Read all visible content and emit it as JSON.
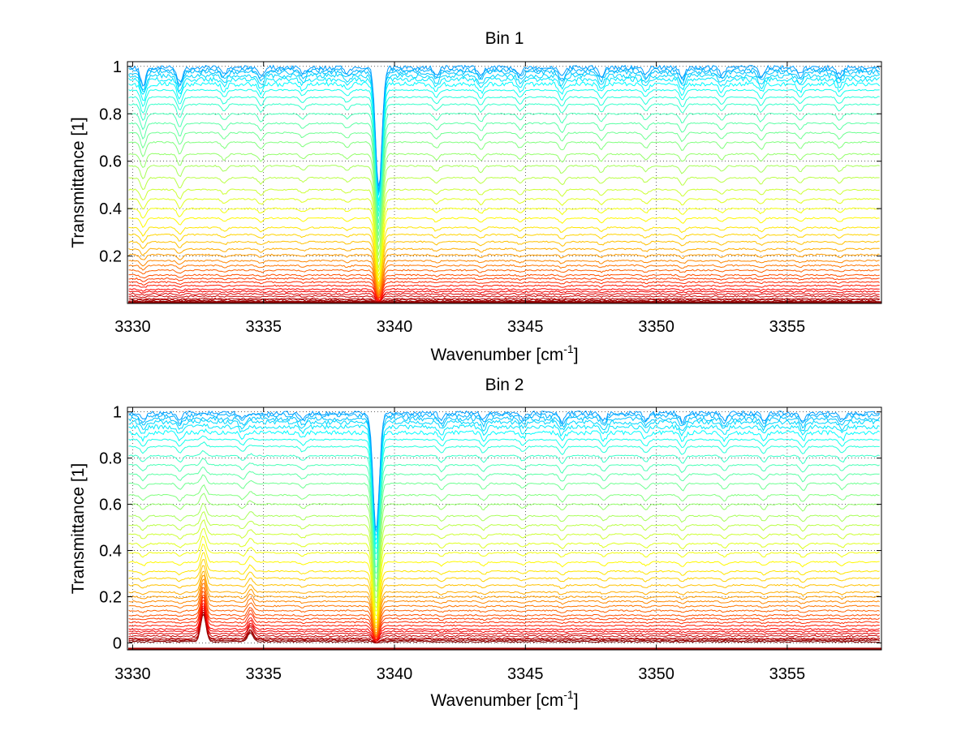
{
  "chart_data": [
    {
      "type": "line",
      "title": "Bin 1",
      "xlabel": "Wavenumber [cm",
      "xlabel_sup": "-1",
      "xlabel_tail": "]",
      "ylabel": "Transmittance [1]",
      "xlim": [
        3329.8,
        3358.6
      ],
      "ylim": [
        0,
        1.02
      ],
      "xticks": [
        3330,
        3335,
        3340,
        3345,
        3350,
        3355
      ],
      "yticks": [
        0.2,
        0.4,
        0.6,
        0.8,
        1
      ],
      "ytick_labels": [
        "0.2",
        "0.4",
        "0.6",
        "0.8",
        "1"
      ],
      "grid": true,
      "colormap": "jet",
      "line_count": 40,
      "baselines": [
        0.005,
        0.01,
        0.015,
        0.02,
        0.03,
        0.04,
        0.05,
        0.06,
        0.075,
        0.09,
        0.105,
        0.12,
        0.14,
        0.16,
        0.18,
        0.205,
        0.23,
        0.26,
        0.29,
        0.32,
        0.36,
        0.4,
        0.44,
        0.48,
        0.53,
        0.58,
        0.63,
        0.68,
        0.72,
        0.76,
        0.8,
        0.84,
        0.87,
        0.9,
        0.925,
        0.945,
        0.96,
        0.975,
        0.985,
        0.995
      ],
      "absorption_lines": [
        {
          "center": 3339.4,
          "depth": 0.85,
          "width": 0.12
        },
        {
          "center": 3330.4,
          "depth": 0.12,
          "width": 0.1
        },
        {
          "center": 3331.8,
          "depth": 0.1,
          "width": 0.1
        },
        {
          "center": 3333.5,
          "depth": 0.05,
          "width": 0.1
        },
        {
          "center": 3334.9,
          "depth": 0.06,
          "width": 0.1
        },
        {
          "center": 3336.5,
          "depth": 0.04,
          "width": 0.1
        },
        {
          "center": 3338.2,
          "depth": 0.04,
          "width": 0.1
        },
        {
          "center": 3341.6,
          "depth": 0.05,
          "width": 0.1
        },
        {
          "center": 3343.3,
          "depth": 0.06,
          "width": 0.1
        },
        {
          "center": 3344.8,
          "depth": 0.05,
          "width": 0.1
        },
        {
          "center": 3346.4,
          "depth": 0.07,
          "width": 0.1
        },
        {
          "center": 3347.9,
          "depth": 0.06,
          "width": 0.1
        },
        {
          "center": 3349.6,
          "depth": 0.05,
          "width": 0.1
        },
        {
          "center": 3351.0,
          "depth": 0.07,
          "width": 0.1
        },
        {
          "center": 3352.5,
          "depth": 0.05,
          "width": 0.1
        },
        {
          "center": 3354.0,
          "depth": 0.06,
          "width": 0.1
        },
        {
          "center": 3355.5,
          "depth": 0.05,
          "width": 0.1
        },
        {
          "center": 3357.0,
          "depth": 0.05,
          "width": 0.1
        }
      ],
      "emission_lines": []
    },
    {
      "type": "line",
      "title": "Bin 2",
      "xlabel": "Wavenumber [cm",
      "xlabel_sup": "-1",
      "xlabel_tail": "]",
      "ylabel": "Transmittance [1]",
      "xlim": [
        3329.8,
        3358.6
      ],
      "ylim": [
        -0.03,
        1.02
      ],
      "xticks": [
        3330,
        3335,
        3340,
        3345,
        3350,
        3355
      ],
      "yticks": [
        0,
        0.2,
        0.4,
        0.6,
        0.8,
        1
      ],
      "ytick_labels": [
        "0",
        "0.2",
        "0.4",
        "0.6",
        "0.8",
        "1"
      ],
      "grid": true,
      "colormap": "jet",
      "line_count": 40,
      "baselines": [
        0.005,
        0.01,
        0.015,
        0.02,
        0.03,
        0.04,
        0.05,
        0.06,
        0.075,
        0.09,
        0.105,
        0.12,
        0.14,
        0.16,
        0.18,
        0.2,
        0.22,
        0.25,
        0.28,
        0.31,
        0.35,
        0.39,
        0.43,
        0.47,
        0.51,
        0.55,
        0.6,
        0.64,
        0.69,
        0.73,
        0.77,
        0.81,
        0.85,
        0.88,
        0.91,
        0.935,
        0.955,
        0.97,
        0.985,
        0.995
      ],
      "absorption_lines": [
        {
          "center": 3339.3,
          "depth": 0.85,
          "width": 0.12
        },
        {
          "center": 3330.4,
          "depth": 0.05,
          "width": 0.1
        },
        {
          "center": 3331.8,
          "depth": 0.05,
          "width": 0.1
        },
        {
          "center": 3334.2,
          "depth": 0.04,
          "width": 0.1
        },
        {
          "center": 3336.5,
          "depth": 0.04,
          "width": 0.1
        },
        {
          "center": 3341.8,
          "depth": 0.05,
          "width": 0.1
        },
        {
          "center": 3343.4,
          "depth": 0.05,
          "width": 0.1
        },
        {
          "center": 3344.9,
          "depth": 0.04,
          "width": 0.1
        },
        {
          "center": 3346.4,
          "depth": 0.06,
          "width": 0.1
        },
        {
          "center": 3348.0,
          "depth": 0.05,
          "width": 0.1
        },
        {
          "center": 3349.6,
          "depth": 0.05,
          "width": 0.1
        },
        {
          "center": 3351.0,
          "depth": 0.06,
          "width": 0.1
        },
        {
          "center": 3352.6,
          "depth": 0.05,
          "width": 0.1
        },
        {
          "center": 3354.1,
          "depth": 0.05,
          "width": 0.1
        },
        {
          "center": 3355.6,
          "depth": 0.06,
          "width": 0.1
        },
        {
          "center": 3357.1,
          "depth": 0.05,
          "width": 0.1
        }
      ],
      "emission_lines": [
        {
          "center": 3332.7,
          "height": 0.12,
          "width": 0.1
        },
        {
          "center": 3334.5,
          "height": 0.04,
          "width": 0.1
        }
      ]
    }
  ]
}
